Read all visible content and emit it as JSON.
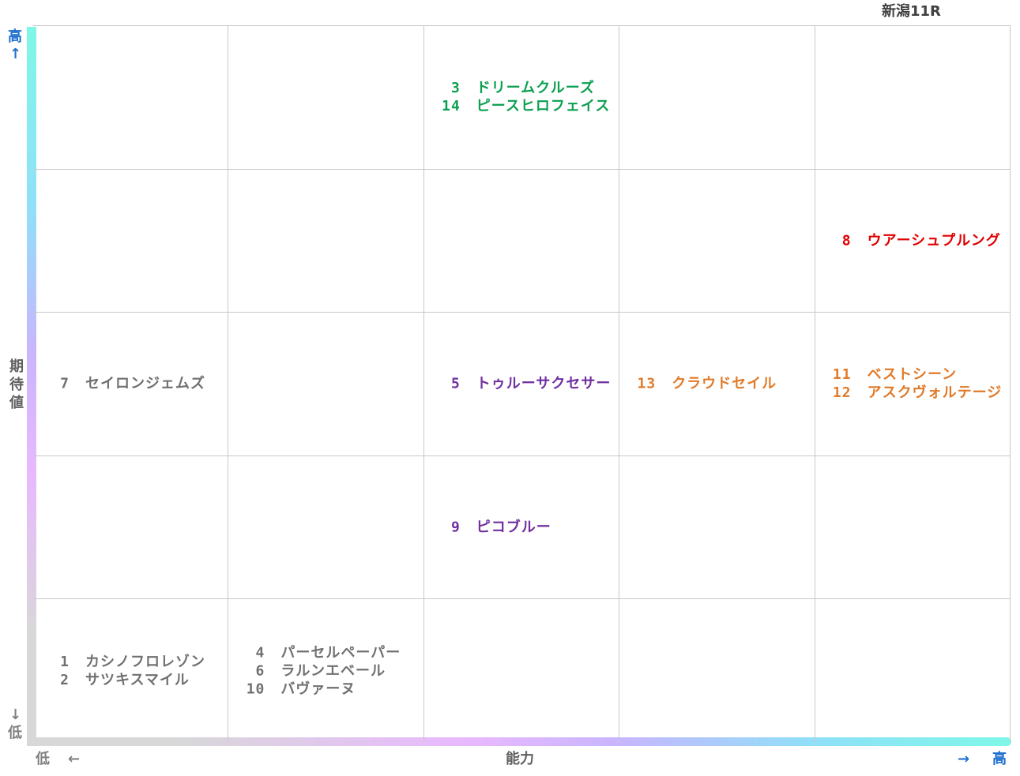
{
  "chart_data": {
    "type": "table",
    "title": "新潟11R",
    "xlabel": "能力",
    "ylabel": "期待値",
    "x_high_label": "高",
    "x_low_label": "低",
    "y_high_label": "高",
    "y_low_label": "低",
    "arrows": {
      "up": "↑",
      "down": "↓",
      "left": "←",
      "right": "→"
    },
    "columns": 5,
    "rows": 5,
    "colors": {
      "green": "#0aa050",
      "red": "#e00000",
      "purple": "#7030a0",
      "orange": "#e07a28",
      "gray": "#707070"
    },
    "cells": [
      {
        "col": 3,
        "row": 1,
        "color": "#0aa050",
        "entries": [
          {
            "num": "3",
            "name": "ドリームクルーズ"
          },
          {
            "num": "14",
            "name": "ピースヒロフェイス"
          }
        ]
      },
      {
        "col": 5,
        "row": 2,
        "color": "#e00000",
        "entries": [
          {
            "num": "8",
            "name": "ウアーシュプルング"
          }
        ]
      },
      {
        "col": 1,
        "row": 3,
        "color": "#707070",
        "entries": [
          {
            "num": "7",
            "name": "セイロンジェムズ"
          }
        ]
      },
      {
        "col": 3,
        "row": 3,
        "color": "#7030a0",
        "entries": [
          {
            "num": "5",
            "name": "トゥルーサクセサー"
          }
        ]
      },
      {
        "col": 4,
        "row": 3,
        "color": "#e07a28",
        "entries": [
          {
            "num": "13",
            "name": "クラウドセイル"
          }
        ]
      },
      {
        "col": 5,
        "row": 3,
        "color": "#e07a28",
        "entries": [
          {
            "num": "11",
            "name": "ベストシーン"
          },
          {
            "num": "12",
            "name": "アスクヴォルテージ"
          }
        ]
      },
      {
        "col": 3,
        "row": 4,
        "color": "#7030a0",
        "entries": [
          {
            "num": "9",
            "name": "ピコブルー"
          }
        ]
      },
      {
        "col": 1,
        "row": 5,
        "color": "#707070",
        "entries": [
          {
            "num": "1",
            "name": "カシノフロレゾン"
          },
          {
            "num": "2",
            "name": "サツキスマイル"
          }
        ]
      },
      {
        "col": 2,
        "row": 5,
        "color": "#707070",
        "entries": [
          {
            "num": "4",
            "name": "パーセルペーパー"
          },
          {
            "num": "6",
            "name": "ラルンエベール"
          },
          {
            "num": "10",
            "name": "バヴァーヌ"
          }
        ]
      }
    ]
  }
}
